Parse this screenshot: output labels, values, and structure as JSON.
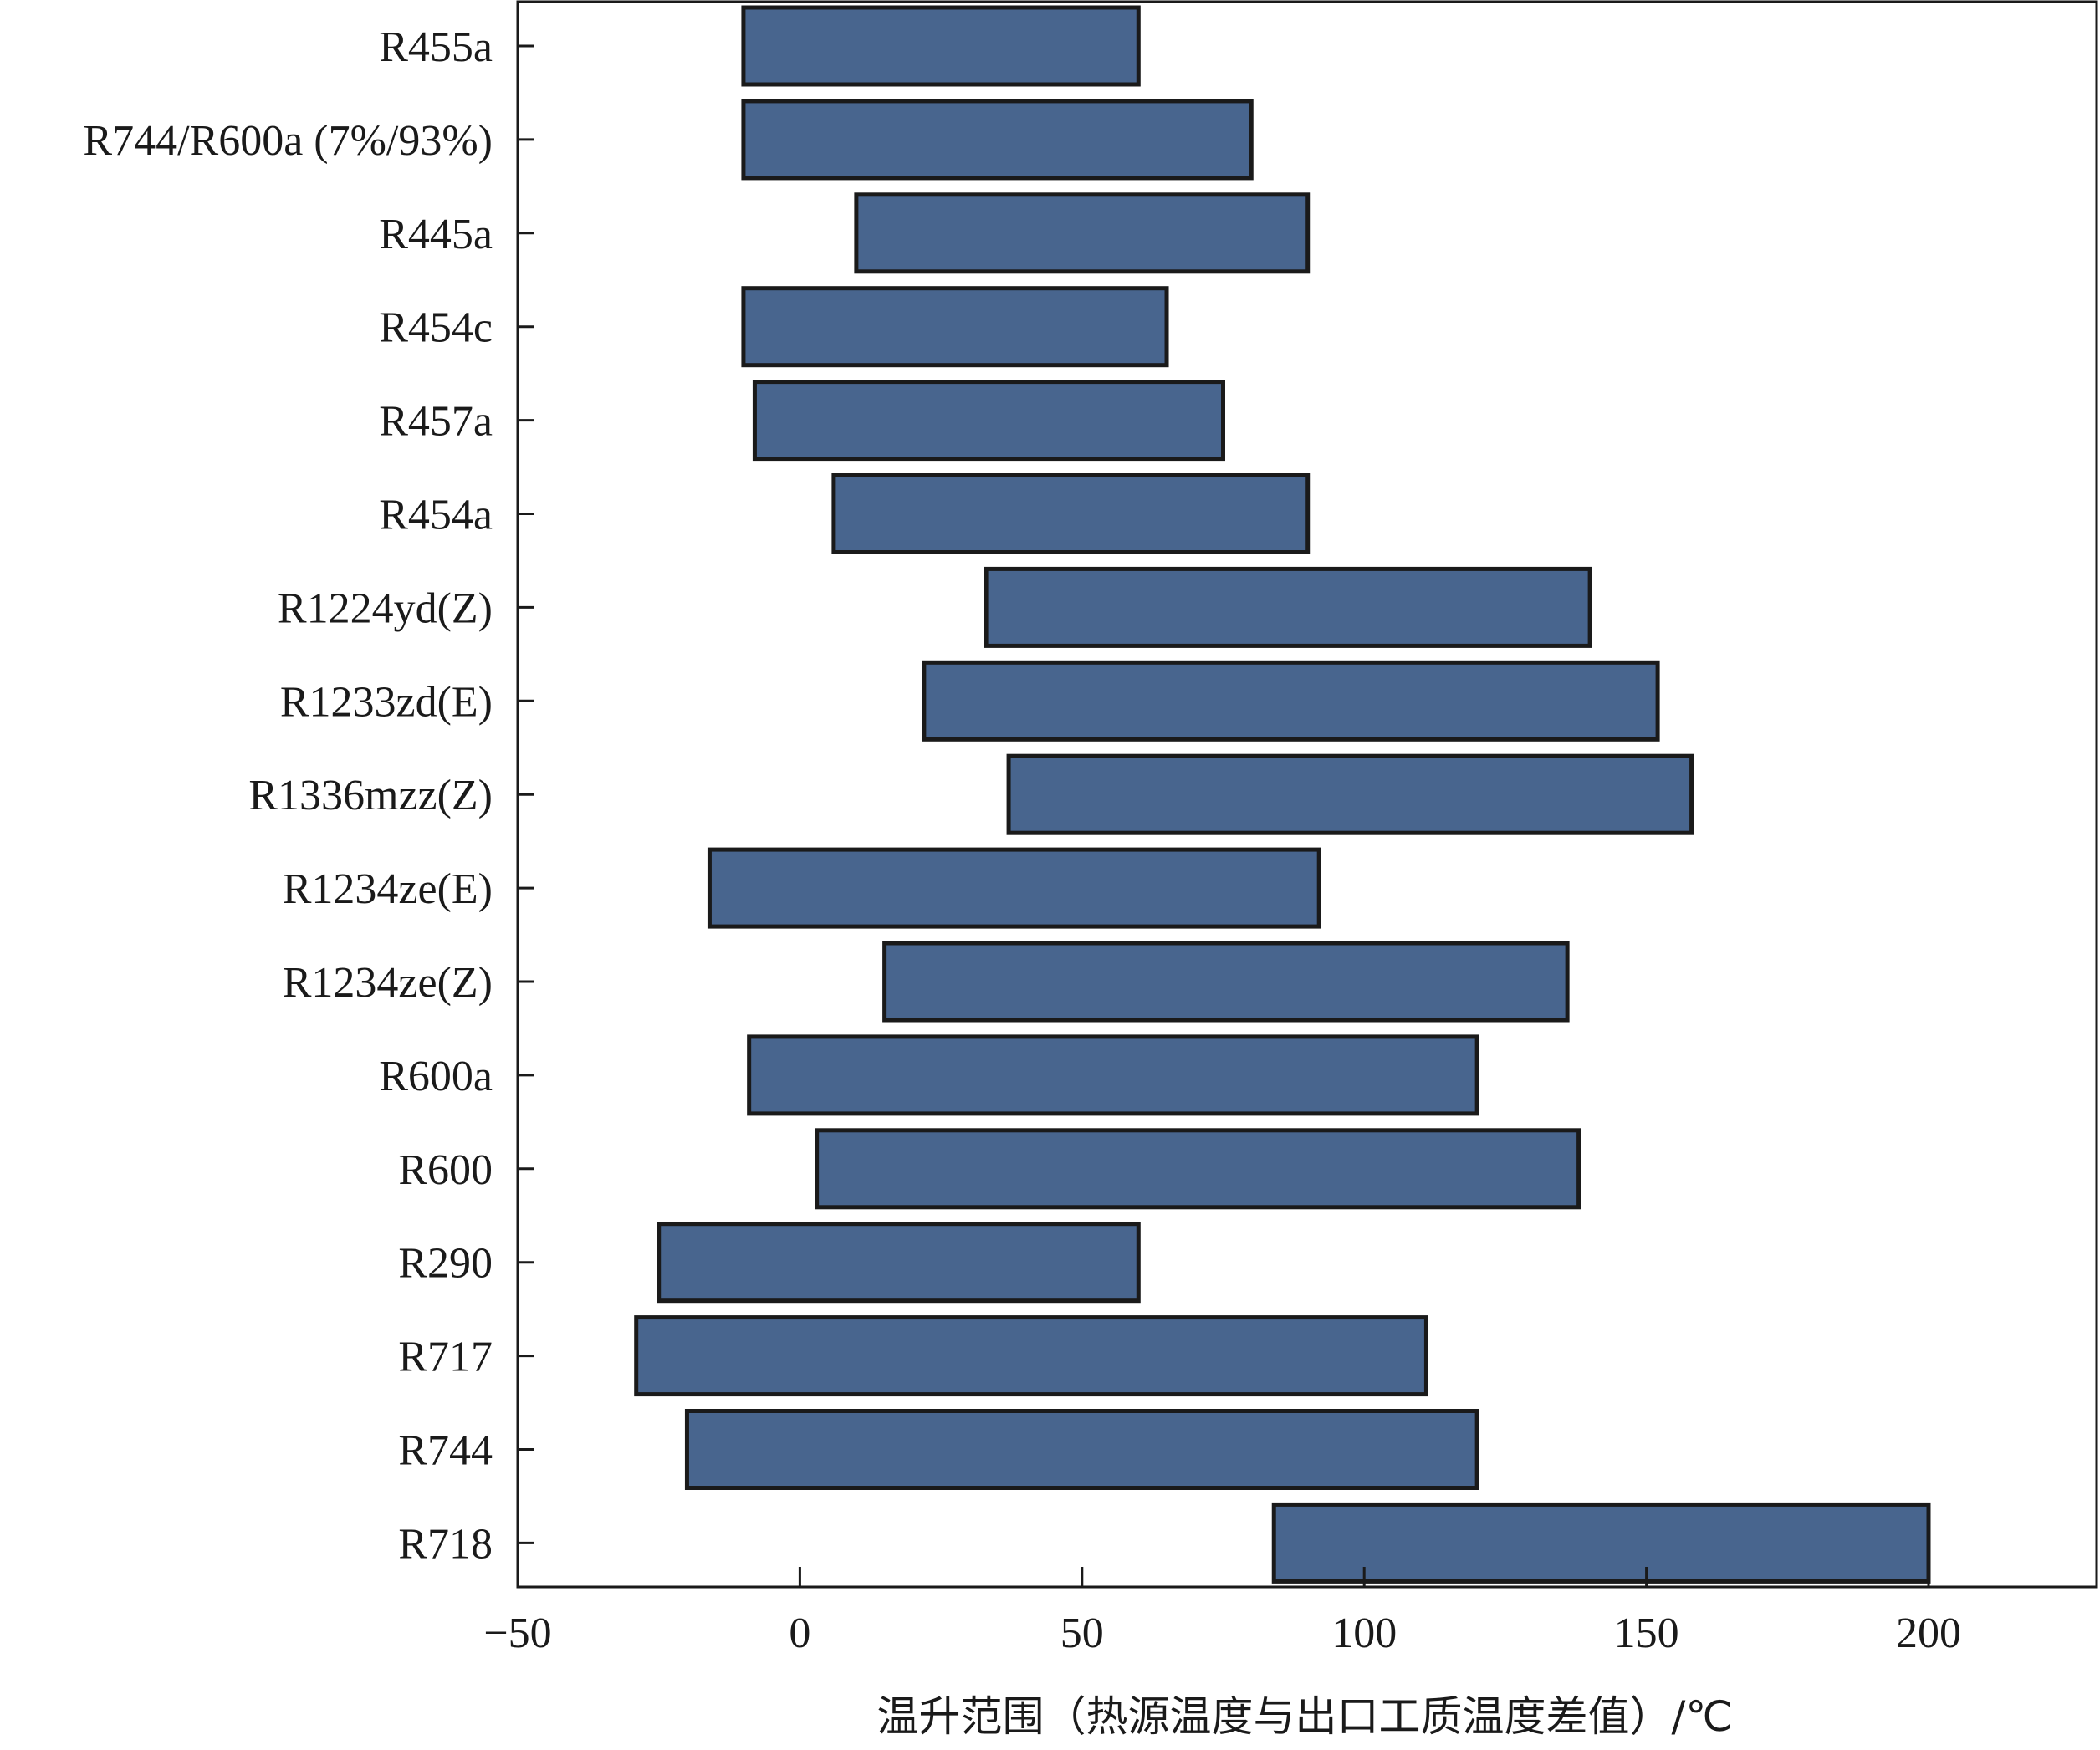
{
  "chart_data": {
    "type": "bar",
    "orientation": "horizontal",
    "style": "floating-range",
    "categories": [
      "R455a",
      "R744/R600a (7%/93%)",
      "R445a",
      "R454c",
      "R457a",
      "R454a",
      "R1224yd(Z)",
      "R1233zd(E)",
      "R1336mzz(Z)",
      "R1234ze(E)",
      "R1234ze(Z)",
      "R600a",
      "R600",
      "R290",
      "R717",
      "R744",
      "R718"
    ],
    "ranges": [
      [
        -10,
        60
      ],
      [
        -10,
        80
      ],
      [
        10,
        90
      ],
      [
        -10,
        65
      ],
      [
        -8,
        75
      ],
      [
        6,
        90
      ],
      [
        33,
        140
      ],
      [
        22,
        152
      ],
      [
        37,
        158
      ],
      [
        -16,
        92
      ],
      [
        15,
        136
      ],
      [
        -9,
        120
      ],
      [
        3,
        138
      ],
      [
        -25,
        60
      ],
      [
        -29,
        111
      ],
      [
        -20,
        120
      ],
      [
        84,
        200
      ]
    ],
    "xlabel": "温升范围（热源温度与出口工质温度差值）/℃",
    "ylabel": "",
    "xlim": [
      -50,
      225
    ],
    "xticks": [
      -50,
      0,
      50,
      100,
      150,
      200
    ],
    "xtick_labels": [
      "−50",
      "0",
      "50",
      "100",
      "150",
      "200"
    ],
    "grid": false,
    "legend": "none",
    "colors": {
      "bar_fill": "#48658e",
      "bar_edge": "#1a1a1a",
      "axis": "#1a1a1a"
    }
  }
}
